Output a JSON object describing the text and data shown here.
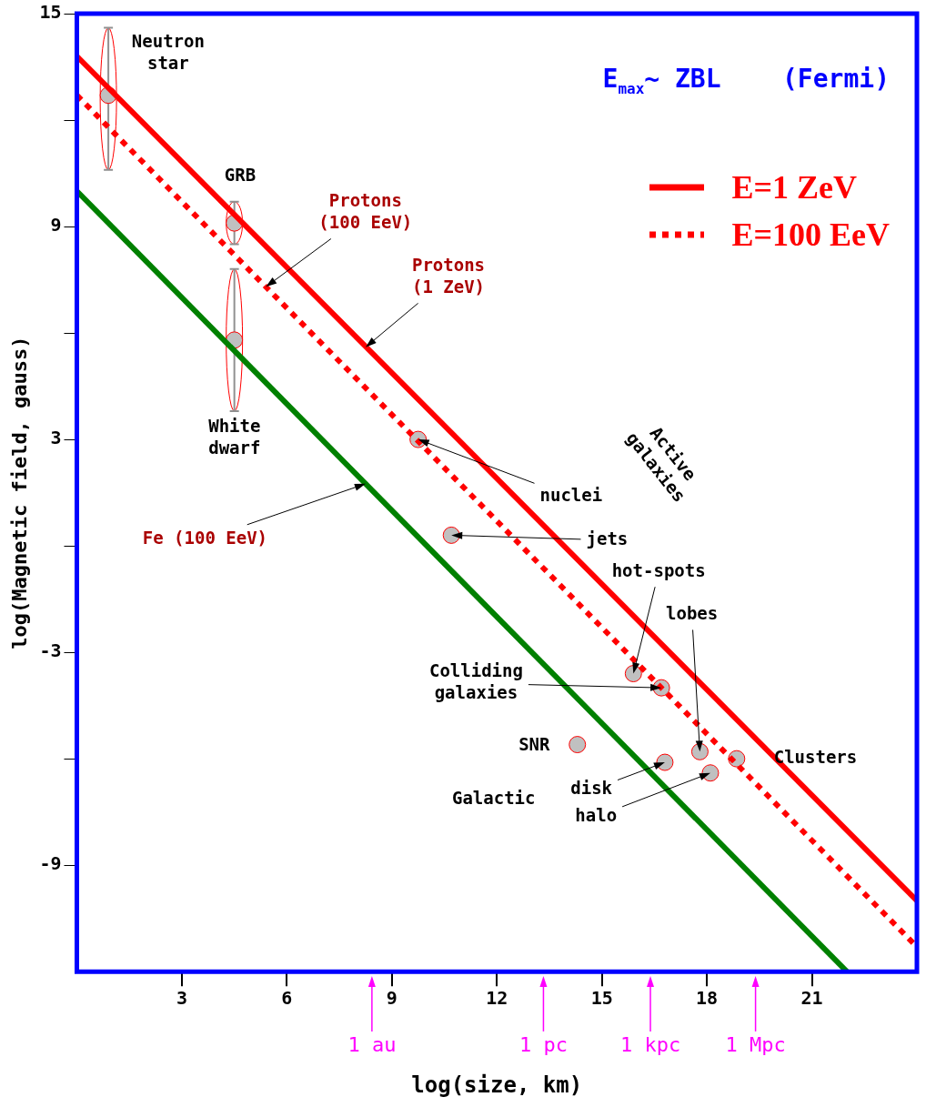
{
  "chart_data": {
    "type": "line",
    "title": "E$_{max}$~ ZBL    (Fermi)",
    "xlabel": "log(size, km)",
    "ylabel": "log(Magnetic field, gauss)",
    "xlim": [
      0,
      24
    ],
    "xticks": [
      3,
      6,
      9,
      12,
      15,
      18,
      21
    ],
    "ylim": [
      -12,
      15
    ],
    "yticks": [
      15,
      {
        "value": 12,
        "label": null
      },
      9,
      {
        "value": 6,
        "label": null
      },
      3,
      {
        "value": 0,
        "label": null
      },
      -3,
      {
        "value": -6,
        "label": null
      },
      -9
    ],
    "grid": false,
    "legend": "top right",
    "series": [
      {
        "name": "E=1 ZeV",
        "color": "#ff0000",
        "line_style": "solid",
        "x": [
          0,
          24
        ],
        "values": [
          13.8,
          -10
        ]
      },
      {
        "name": "E=100 EeV",
        "color": "#ff0000",
        "line_style": "dotted",
        "x": [
          0,
          24
        ],
        "values": [
          12.7,
          -11.3
        ]
      },
      {
        "color": "#008000",
        "line_style": "solid",
        "x": [
          0,
          22
        ],
        "values": [
          10,
          -12
        ]
      },
      {
        "type": "scatter",
        "color": "#c0c0c0",
        "marker": "circle",
        "x": [
          0.9,
          4.5,
          4.5,
          9.75,
          10.7,
          15.9,
          16.7,
          14.3,
          16.8,
          18.1,
          17.8,
          18.85
        ],
        "values": [
          12.7,
          9.1,
          5.8,
          3.0,
          0.3,
          -3.6,
          -4.0,
          -5.6,
          -6.1,
          -6.4,
          -5.8,
          -6.0
        ],
        "errors": [
          [
            10.6,
            14.6
          ],
          [
            8.5,
            9.7
          ],
          [
            3.8,
            7.8
          ],
          null,
          null,
          null,
          null,
          null,
          null,
          null,
          null,
          null
        ]
      }
    ],
    "annotations": [
      "Neutron\nstar",
      "GRB",
      {
        "text": "Protons\n(100 EeV)",
        "x": 5.4,
        "y": 7.3
      },
      {
        "text": "Protons\n(1 ZeV)",
        "x": 8.25,
        "y": 5.6
      },
      "White\ndwarf",
      {
        "text": "nuclei",
        "x": 9.75,
        "y": 3.0
      },
      {
        "text": "jets",
        "x": 10.7,
        "y": 0.3
      },
      {
        "text": "Fe (100 EeV)",
        "x": 8.25,
        "y": 1.75
      },
      "Active\ngalaxies",
      {
        "text": "hot-spots",
        "x": 15.9,
        "y": -3.6
      },
      {
        "text": "lobes",
        "x": 17.8,
        "y": -5.8
      },
      {
        "text": "Colliding\ngalaxies",
        "x": 16.7,
        "y": -4.0
      },
      "SNR",
      "Galactic",
      {
        "text": "disk",
        "x": 16.8,
        "y": -6.1
      },
      {
        "text": "halo",
        "x": 18.1,
        "y": -6.4
      },
      "Clusters",
      "1 au",
      "1 pc",
      "1 kpc",
      "1 Mpc"
    ]
  }
}
